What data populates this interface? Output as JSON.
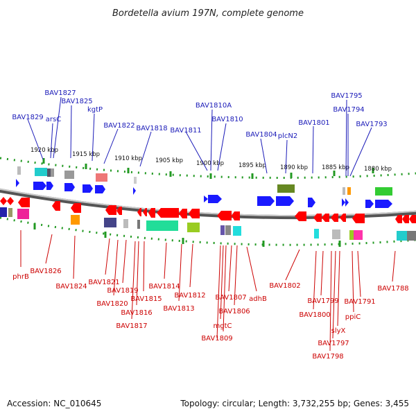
{
  "title": "Bordetella avium 197N, complete genome",
  "footer": {
    "accession": "Accession: NC_010645",
    "summary": "Topology: circular; Length: 3,732,255 bp; Genes: 3,455"
  },
  "colors": {
    "forward_gene": "#1a1aff",
    "reverse_gene": "#ff0000",
    "label_top": "#1a1ab8",
    "label_bottom": "#cc0000",
    "backbone": "#888888",
    "tick": "#229922"
  },
  "ticks": [
    "1920 kbp",
    "1915 kbp",
    "1910 kbp",
    "1905 kbp",
    "1900 kbp",
    "1895 kbp",
    "1890 kbp",
    "1885 kbp",
    "1880 kbp"
  ],
  "labels_forward": [
    "BAV1827",
    "BAV1825",
    "BAV1829",
    "arsC",
    "kgtP",
    "BAV1822",
    "BAV1818",
    "BAV1811",
    "BAV1810A",
    "BAV1810",
    "BAV1804",
    "plcN2",
    "BAV1801",
    "BAV1795",
    "BAV1794",
    "BAV1793"
  ],
  "labels_reverse": [
    "phrB",
    "BAV1826",
    "BAV1824",
    "BAV1821",
    "BAV1820",
    "BAV1819",
    "BAV1817",
    "BAV1816",
    "BAV1815",
    "BAV1814",
    "BAV1813",
    "BAV1812",
    "mgtC",
    "BAV1809",
    "BAV1807",
    "BAV1806",
    "adhB",
    "BAV1802",
    "BAV1800",
    "BAV1799",
    "BAV1798",
    "BAV1797",
    "slyX",
    "BAV1791",
    "ppiC",
    "BAV1788"
  ]
}
